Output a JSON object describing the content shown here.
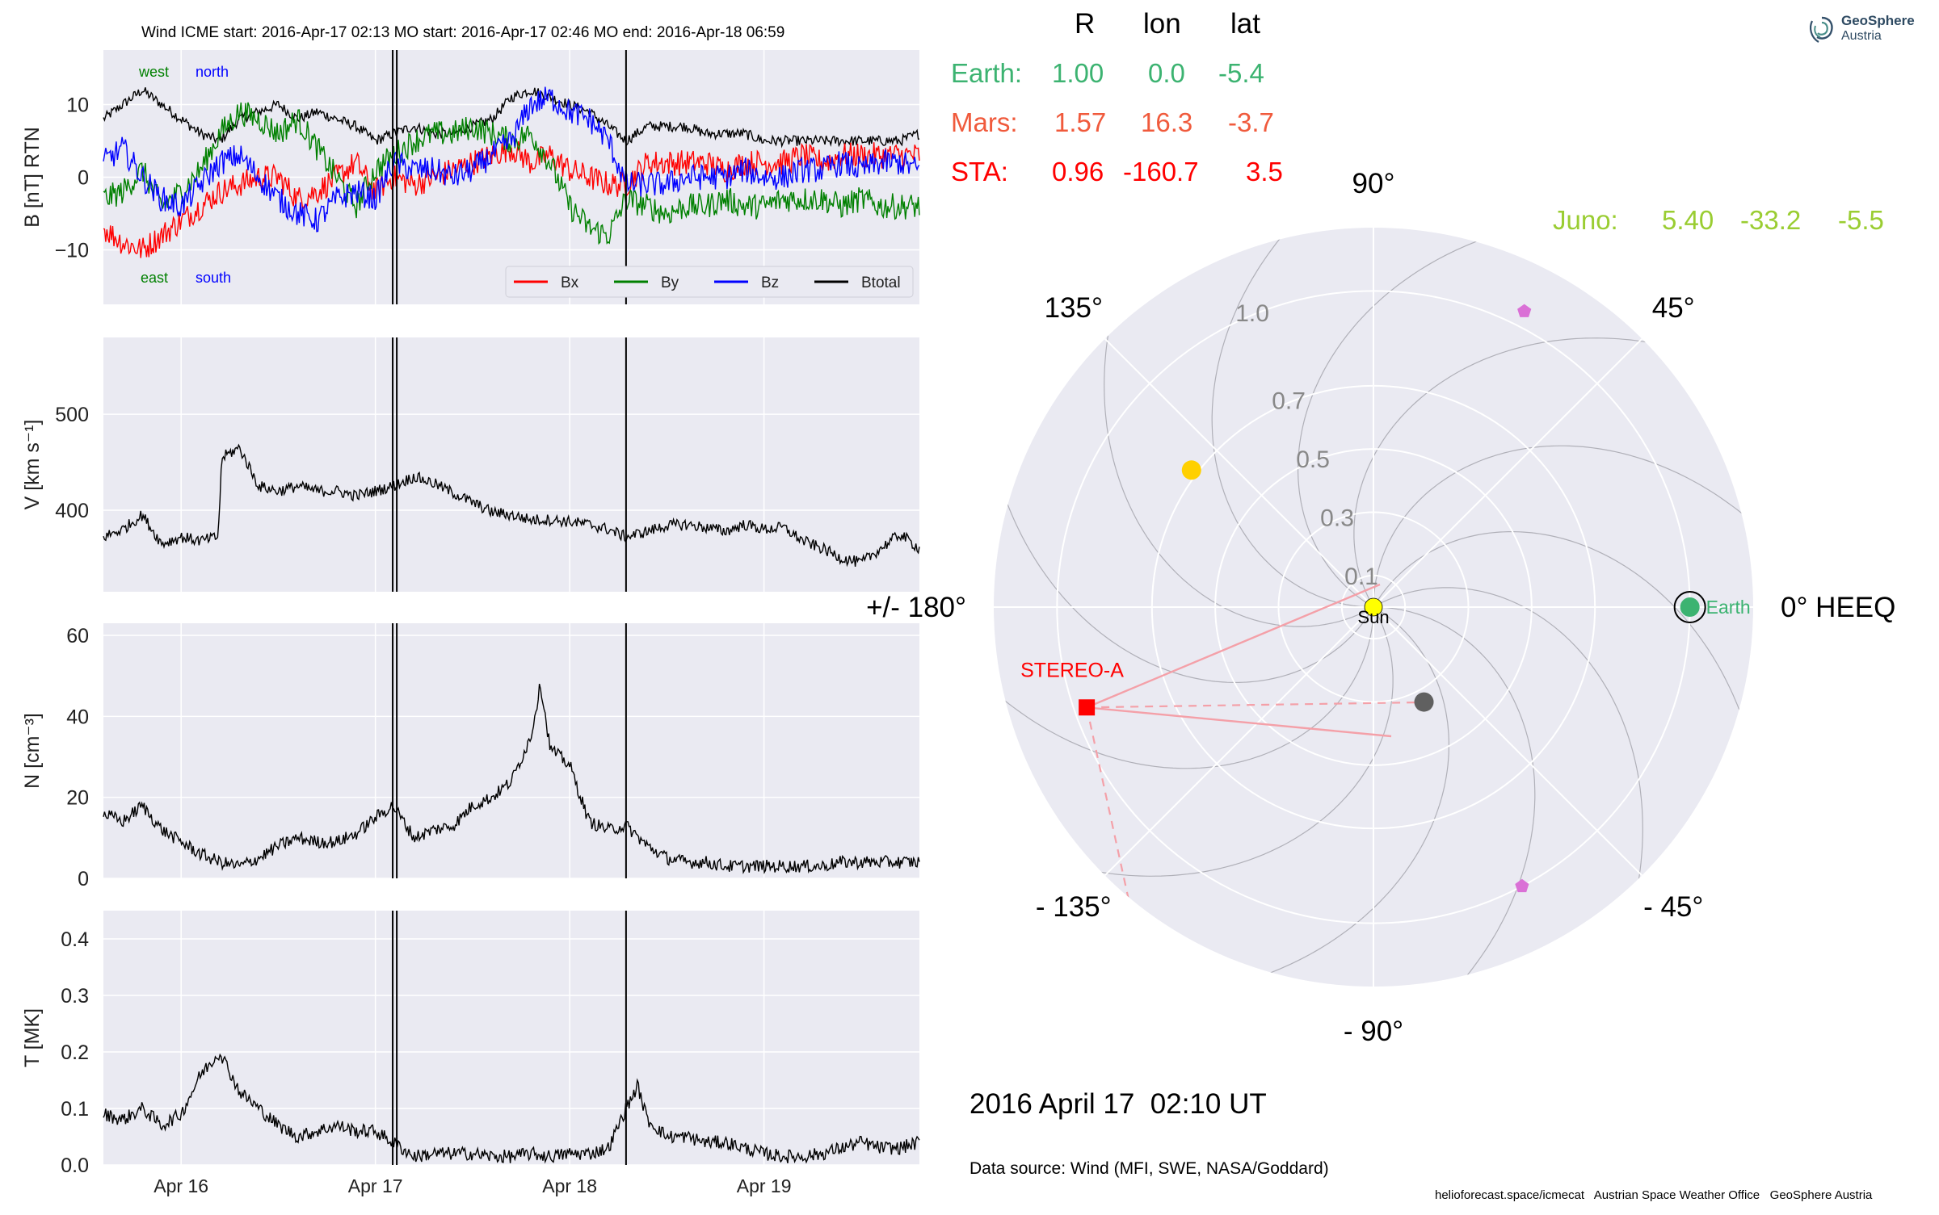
{
  "figure_title": "Wind    ICME start: 2016-Apr-17 02:13    MO start: 2016-Apr-17 02:46    MO end: 2016-Apr-18 06:59",
  "logo": {
    "line1": "GeoSphere",
    "line2": "Austria"
  },
  "colors": {
    "bx": "#ff0000",
    "by": "#008000",
    "bz": "#0000ff",
    "btotal": "#000000",
    "earth": "#3cb371",
    "mars": "#f05a3c",
    "sta": "#ff0000",
    "juno": "#9acd32",
    "panel_bg": "#eaeaf2",
    "grid": "#ffffff",
    "sun": "#ffff00",
    "venus": "#ffd000",
    "mercury": "#606060",
    "psp": "#da70d6"
  },
  "chart_data": [
    {
      "type": "line",
      "panel": "magnetic_field",
      "ylabel": "B [nT] RTN",
      "yticks": [
        "10",
        "0",
        "−10"
      ],
      "ylim": [
        -17.5,
        17.5
      ],
      "xlim_days": [
        15.6,
        19.8
      ],
      "xticks": [
        "Apr 16",
        "Apr 17",
        "Apr 18",
        "Apr 19"
      ],
      "annotations": {
        "west": "west",
        "north": "north",
        "east": "east",
        "south": "south"
      },
      "legend": {
        "placement": "lower-right",
        "entries": [
          "Bx",
          "By",
          "Bz",
          "Btotal"
        ]
      },
      "series": [
        {
          "name": "Btotal",
          "color": "#000000",
          "x": [
            15.6,
            15.7,
            15.8,
            15.9,
            16.0,
            16.1,
            16.2,
            16.3,
            16.4,
            16.5,
            16.6,
            16.7,
            16.8,
            16.9,
            17.0,
            17.09,
            17.2,
            17.3,
            17.4,
            17.5,
            17.6,
            17.7,
            17.8,
            17.9,
            18.0,
            18.1,
            18.2,
            18.29,
            18.4,
            18.5,
            18.6,
            18.7,
            18.8,
            18.9,
            19.0,
            19.1,
            19.2,
            19.3,
            19.4,
            19.5,
            19.6,
            19.7,
            19.8
          ],
          "y": [
            8,
            10,
            12,
            10,
            8,
            6,
            5,
            8,
            9,
            10,
            8,
            9,
            8,
            7,
            5,
            6,
            7,
            6,
            6,
            7,
            8,
            11,
            12,
            11,
            10,
            9,
            7,
            5,
            7,
            7,
            7,
            6,
            6,
            6,
            5,
            5,
            5,
            5,
            5,
            5,
            5,
            5,
            6
          ]
        },
        {
          "name": "Bx",
          "color": "#ff0000",
          "x": [
            15.6,
            15.7,
            15.8,
            15.9,
            16.0,
            16.1,
            16.2,
            16.3,
            16.4,
            16.5,
            16.6,
            16.7,
            16.8,
            16.9,
            17.0,
            17.09,
            17.2,
            17.3,
            17.4,
            17.5,
            17.6,
            17.7,
            17.8,
            17.9,
            18.0,
            18.1,
            18.2,
            18.29,
            18.4,
            18.5,
            18.6,
            18.7,
            18.8,
            18.9,
            19.0,
            19.1,
            19.2,
            19.3,
            19.4,
            19.5,
            19.6,
            19.7,
            19.8
          ],
          "y": [
            -7,
            -9,
            -10,
            -8,
            -6,
            -4,
            -2,
            -1,
            0,
            0,
            -3,
            -2,
            0,
            2,
            -2,
            0,
            -1,
            0,
            1,
            2,
            3,
            4,
            2,
            3,
            1,
            0,
            -1,
            -1,
            2,
            2,
            2,
            2,
            1,
            2,
            2,
            2,
            3,
            2,
            3,
            3,
            3,
            3,
            3
          ]
        },
        {
          "name": "By",
          "color": "#008000",
          "x": [
            15.6,
            15.7,
            15.8,
            15.9,
            16.0,
            16.1,
            16.2,
            16.3,
            16.4,
            16.5,
            16.6,
            16.7,
            16.8,
            16.9,
            17.0,
            17.09,
            17.2,
            17.3,
            17.4,
            17.5,
            17.6,
            17.7,
            17.8,
            17.9,
            18.0,
            18.1,
            18.2,
            18.29,
            18.4,
            18.5,
            18.6,
            18.7,
            18.8,
            18.9,
            19.0,
            19.1,
            19.2,
            19.3,
            19.4,
            19.5,
            19.6,
            19.7,
            19.8
          ],
          "y": [
            -3,
            -2,
            1,
            -4,
            -2,
            1,
            6,
            9,
            8,
            6,
            8,
            4,
            0,
            -4,
            1,
            3,
            5,
            6,
            6,
            7,
            6,
            5,
            6,
            2,
            -4,
            -7,
            -8,
            -3,
            -4,
            -5,
            -4,
            -4,
            -3,
            -4,
            -4,
            -3,
            -3,
            -3,
            -4,
            -3,
            -4,
            -4,
            -4
          ]
        },
        {
          "name": "Bz",
          "color": "#0000ff",
          "x": [
            15.6,
            15.7,
            15.8,
            15.9,
            16.0,
            16.1,
            16.2,
            16.3,
            16.4,
            16.5,
            16.6,
            16.7,
            16.8,
            16.9,
            17.0,
            17.09,
            17.2,
            17.3,
            17.4,
            17.5,
            17.6,
            17.7,
            17.8,
            17.9,
            18.0,
            18.1,
            18.2,
            18.29,
            18.4,
            18.5,
            18.6,
            18.7,
            18.8,
            18.9,
            19.0,
            19.1,
            19.2,
            19.3,
            19.4,
            19.5,
            19.6,
            19.7,
            19.8
          ],
          "y": [
            2,
            4,
            0,
            -3,
            -4,
            -1,
            2,
            3,
            0,
            -3,
            -5,
            -6,
            -3,
            -2,
            -3,
            2,
            1,
            1,
            0,
            1,
            3,
            5,
            10,
            11,
            9,
            8,
            5,
            -1,
            -1,
            -1,
            0,
            0,
            0,
            1,
            0,
            0,
            1,
            1,
            2,
            1,
            2,
            2,
            1
          ]
        }
      ]
    },
    {
      "type": "line",
      "panel": "speed",
      "ylabel": "V [km s⁻¹]",
      "yticks": [
        "500",
        "400"
      ],
      "ylim": [
        315,
        580
      ],
      "xlim_days": [
        15.6,
        19.8
      ],
      "series": [
        {
          "name": "",
          "color": "#000000",
          "x": [
            15.6,
            15.7,
            15.8,
            15.9,
            16.0,
            16.1,
            16.19,
            16.21,
            16.3,
            16.4,
            16.5,
            16.6,
            16.7,
            16.8,
            16.9,
            17.0,
            17.09,
            17.2,
            17.3,
            17.4,
            17.5,
            17.6,
            17.7,
            17.8,
            17.9,
            18.0,
            18.1,
            18.2,
            18.29,
            18.4,
            18.5,
            18.6,
            18.7,
            18.8,
            18.9,
            19.0,
            19.1,
            19.2,
            19.3,
            19.4,
            19.5,
            19.6,
            19.7,
            19.8
          ],
          "y": [
            372,
            380,
            395,
            365,
            372,
            368,
            372,
            455,
            465,
            425,
            420,
            425,
            420,
            420,
            415,
            420,
            425,
            435,
            428,
            418,
            408,
            398,
            395,
            390,
            390,
            388,
            385,
            380,
            372,
            378,
            384,
            385,
            382,
            378,
            385,
            380,
            382,
            368,
            360,
            350,
            345,
            360,
            375,
            360
          ]
        }
      ]
    },
    {
      "type": "line",
      "panel": "density",
      "ylabel": "N [cm⁻³]",
      "yticks": [
        "60",
        "40",
        "20",
        "0"
      ],
      "ylim": [
        0,
        63
      ],
      "xlim_days": [
        15.6,
        19.8
      ],
      "series": [
        {
          "name": "",
          "color": "#000000",
          "x": [
            15.6,
            15.7,
            15.8,
            15.9,
            16.0,
            16.1,
            16.2,
            16.3,
            16.4,
            16.5,
            16.6,
            16.7,
            16.8,
            16.9,
            17.0,
            17.09,
            17.2,
            17.3,
            17.4,
            17.5,
            17.6,
            17.7,
            17.8,
            17.85,
            17.9,
            18.0,
            18.1,
            18.2,
            18.29,
            18.4,
            18.5,
            18.6,
            18.7,
            18.8,
            18.9,
            19.0,
            19.1,
            19.2,
            19.3,
            19.4,
            19.5,
            19.6,
            19.7,
            19.8
          ],
          "y": [
            16,
            14,
            18,
            12,
            9,
            6,
            4,
            3,
            5,
            8,
            10,
            9,
            9,
            11,
            15,
            18,
            10,
            12,
            13,
            18,
            20,
            24,
            35,
            48,
            32,
            28,
            14,
            12,
            13,
            8,
            5,
            4,
            4,
            3,
            3,
            3,
            3,
            3,
            3,
            4,
            4,
            4,
            4,
            4
          ]
        }
      ]
    },
    {
      "type": "line",
      "panel": "temperature",
      "ylabel": "T [MK]",
      "yticks": [
        "0.4",
        "0.3",
        "0.2",
        "0.1",
        "0.0"
      ],
      "ylim": [
        0,
        0.45
      ],
      "xlim_days": [
        15.6,
        19.8
      ],
      "series": [
        {
          "name": "",
          "color": "#000000",
          "x": [
            15.6,
            15.7,
            15.8,
            15.9,
            16.0,
            16.1,
            16.2,
            16.3,
            16.4,
            16.5,
            16.6,
            16.7,
            16.8,
            16.9,
            17.0,
            17.09,
            17.2,
            17.3,
            17.4,
            17.5,
            17.6,
            17.7,
            17.8,
            17.9,
            18.0,
            18.1,
            18.2,
            18.29,
            18.35,
            18.4,
            18.5,
            18.6,
            18.7,
            18.8,
            18.9,
            19.0,
            19.1,
            19.2,
            19.3,
            19.4,
            19.5,
            19.6,
            19.7,
            19.8
          ],
          "y": [
            0.09,
            0.08,
            0.1,
            0.07,
            0.09,
            0.16,
            0.2,
            0.13,
            0.1,
            0.07,
            0.05,
            0.06,
            0.07,
            0.06,
            0.06,
            0.04,
            0.015,
            0.02,
            0.02,
            0.02,
            0.015,
            0.015,
            0.02,
            0.015,
            0.02,
            0.02,
            0.03,
            0.1,
            0.14,
            0.08,
            0.05,
            0.05,
            0.04,
            0.04,
            0.03,
            0.02,
            0.015,
            0.015,
            0.02,
            0.03,
            0.04,
            0.03,
            0.03,
            0.04
          ]
        }
      ]
    },
    {
      "type": "scatter",
      "panel": "polar_heliocentric",
      "rlim": [
        0,
        1.2
      ],
      "rticks": [
        "0.1",
        "0.3",
        "0.5",
        "0.7",
        "1.0"
      ],
      "rtick_values": [
        0.1,
        0.3,
        0.5,
        0.7,
        1.0
      ],
      "angle_labels": [
        {
          "angle": 0,
          "label": "0° HEEQ"
        },
        {
          "angle": 45,
          "label": "45°"
        },
        {
          "angle": 90,
          "label": "90°"
        },
        {
          "angle": 135,
          "label": "135°"
        },
        {
          "angle": 180,
          "label": "+/- 180°"
        },
        {
          "angle": -135,
          "label": "- 135°"
        },
        {
          "angle": -90,
          "label": "- 90°"
        },
        {
          "angle": -45,
          "label": "- 45°"
        }
      ],
      "bodies": [
        {
          "name": "Sun",
          "r": 0.0,
          "lon": 0,
          "color": "#ffff00",
          "marker": "circle",
          "label": "Sun"
        },
        {
          "name": "Earth",
          "r": 1.0,
          "lon": 0.0,
          "color": "#3cb371",
          "marker": "circle",
          "label": "Earth"
        },
        {
          "name": "STEREO-A",
          "r": 0.96,
          "lon": -160.7,
          "color": "#ff0000",
          "marker": "square",
          "label": "STEREO-A"
        },
        {
          "name": "Venus",
          "r": 0.72,
          "lon": 143,
          "color": "#ffd000",
          "marker": "circle",
          "label": ""
        },
        {
          "name": "Mercury",
          "r": 0.34,
          "lon": -62,
          "color": "#606060",
          "marker": "circle",
          "label": ""
        },
        {
          "name": "PSP-1",
          "r": 1.05,
          "lon": 63,
          "color": "#da70d6",
          "marker": "pentagon",
          "label": ""
        },
        {
          "name": "PSP-2",
          "r": 1.0,
          "lon": -62,
          "color": "#da70d6",
          "marker": "pentagon",
          "label": ""
        }
      ]
    }
  ],
  "position_table": {
    "headers": [
      "R",
      "lon",
      "lat"
    ],
    "rows": [
      {
        "name": "Earth:",
        "R": "1.00",
        "lon": "0.0",
        "lat": "-5.4",
        "color": "#3cb371"
      },
      {
        "name": "Mars:",
        "R": "1.57",
        "lon": "16.3",
        "lat": "-3.7",
        "color": "#f05a3c"
      },
      {
        "name": "STA:",
        "R": "0.96",
        "lon": "-160.7",
        "lat": "3.5",
        "color": "#ff0000"
      }
    ],
    "juno": {
      "name": "Juno:",
      "R": "5.40",
      "lon": "-33.2",
      "lat": "-5.5",
      "color": "#9acd32"
    }
  },
  "timestamp": "2016 April 17  02:10 UT",
  "data_source": "Data source: Wind (MFI, SWE, NASA/Goddard)",
  "footer": "helioforecast.space/icmecat   Austrian Space Weather Office   GeoSphere Austria",
  "event_lines_days": [
    17.089,
    17.11,
    18.29
  ]
}
